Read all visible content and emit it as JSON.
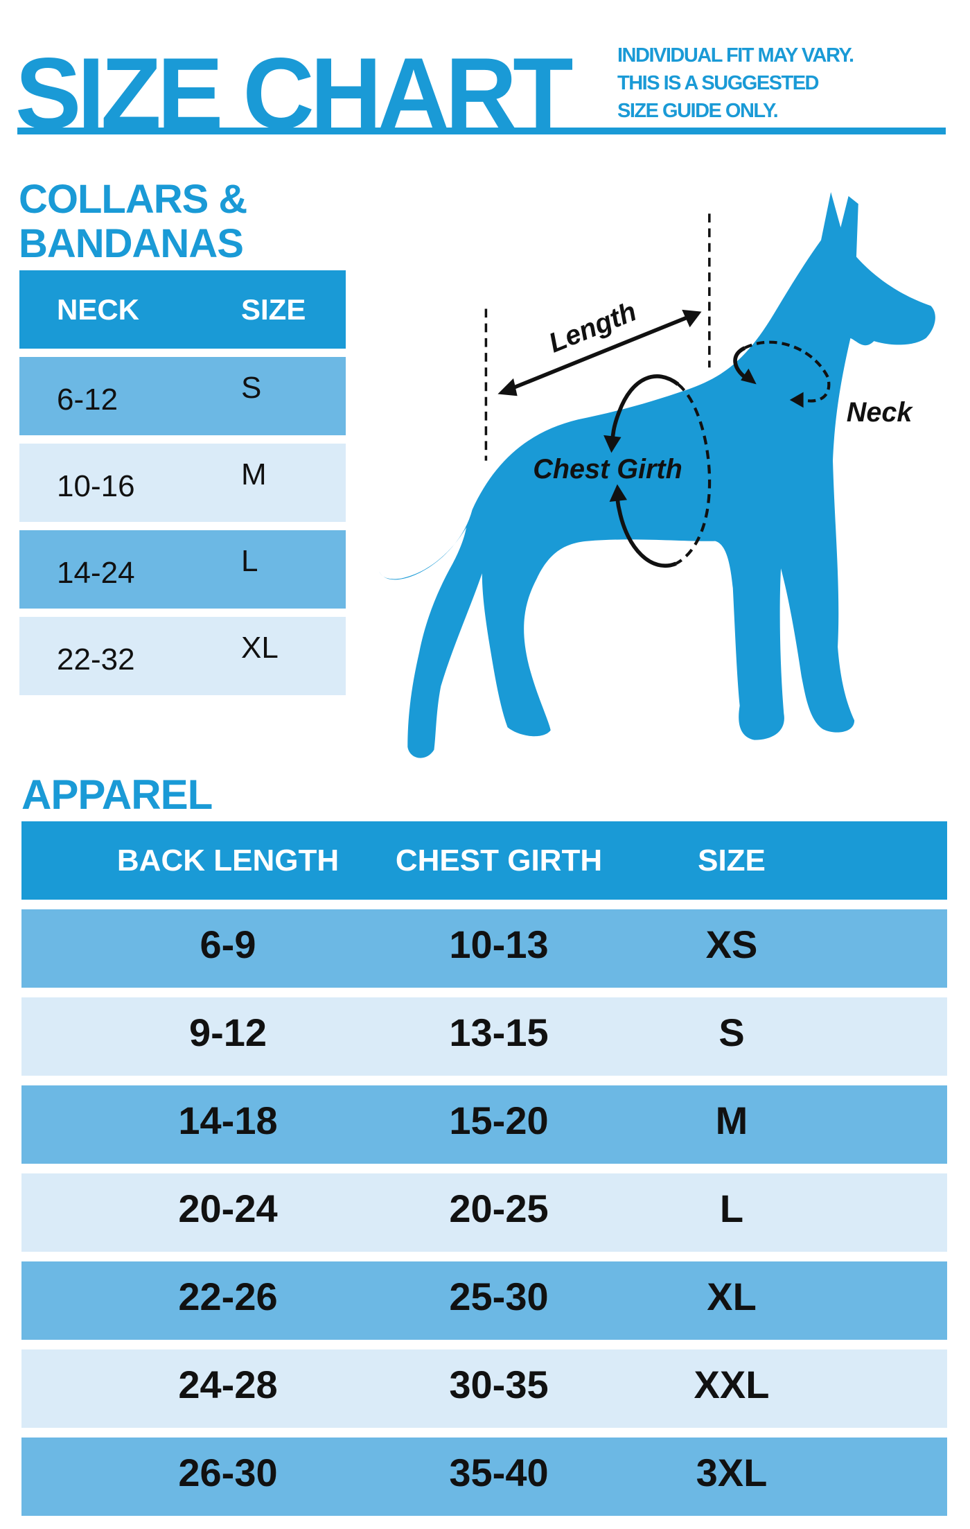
{
  "title": "SIZE CHART",
  "note": [
    "INDIVIDUAL FIT MAY VARY.",
    "THIS IS A SUGGESTED",
    "SIZE GUIDE ONLY."
  ],
  "collars": {
    "heading": [
      "COLLARS &",
      "BANDANAS"
    ],
    "headers": [
      "NECK",
      "SIZE"
    ],
    "rows": [
      {
        "neck": "6-12",
        "size": "S"
      },
      {
        "neck": "10-16",
        "size": "M"
      },
      {
        "neck": "14-24",
        "size": "L"
      },
      {
        "neck": "22-32",
        "size": "XL"
      }
    ]
  },
  "diagram": {
    "length_label": "Length",
    "chest_label": "Chest Girth",
    "neck_label": "Neck"
  },
  "apparel": {
    "heading": "APPAREL",
    "headers": [
      "BACK LENGTH",
      "CHEST GIRTH",
      "SIZE"
    ],
    "rows": [
      {
        "back_length": "6-9",
        "chest_girth": "10-13",
        "size": "XS"
      },
      {
        "back_length": "9-12",
        "chest_girth": "13-15",
        "size": "S"
      },
      {
        "back_length": "14-18",
        "chest_girth": "15-20",
        "size": "M"
      },
      {
        "back_length": "20-24",
        "chest_girth": "20-25",
        "size": "L"
      },
      {
        "back_length": "22-26",
        "chest_girth": "25-30",
        "size": "XL"
      },
      {
        "back_length": "24-28",
        "chest_girth": "30-35",
        "size": "XXL"
      },
      {
        "back_length": "26-30",
        "chest_girth": "35-40",
        "size": "3XL"
      }
    ]
  },
  "colors": {
    "brand_blue": "#1a9ad6",
    "row_dark": "#6cb8e4",
    "row_light": "#daebf8",
    "text": "#111111"
  }
}
